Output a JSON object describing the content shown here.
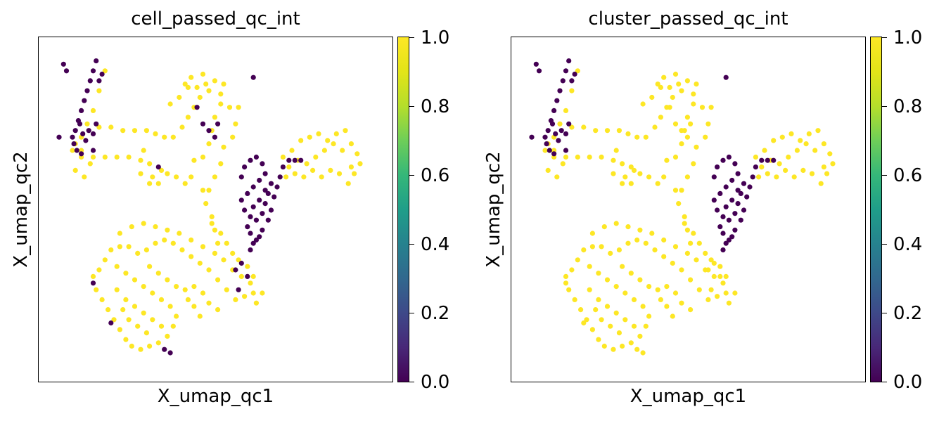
{
  "chart_data": [
    {
      "type": "scatter",
      "title": "cell_passed_qc_int",
      "xlabel": "X_umap_qc1",
      "ylabel": "X_umap_qc2",
      "colormap": "viridis",
      "colorbar": {
        "range": [
          0.0,
          1.0
        ],
        "ticks": [
          "0.0",
          "0.2",
          "0.4",
          "0.6",
          "0.8",
          "1.0"
        ]
      },
      "series": [
        {
          "values_color": "#fde725",
          "value": 1.0,
          "points": [
            [
              2.0,
              9.2
            ],
            [
              1.8,
              8.6
            ],
            [
              1.6,
              8.0
            ],
            [
              1.4,
              7.6
            ],
            [
              1.2,
              7.2
            ],
            [
              1.0,
              7.0
            ],
            [
              0.9,
              6.8
            ],
            [
              1.8,
              7.5
            ],
            [
              2.2,
              7.5
            ],
            [
              2.6,
              7.4
            ],
            [
              3.0,
              7.4
            ],
            [
              3.4,
              7.4
            ],
            [
              3.7,
              7.3
            ],
            [
              4.0,
              7.2
            ],
            [
              4.3,
              7.2
            ],
            [
              4.6,
              7.5
            ],
            [
              4.8,
              7.8
            ],
            [
              5.0,
              8.1
            ],
            [
              5.2,
              8.4
            ],
            [
              5.4,
              8.8
            ],
            [
              4.5,
              8.4
            ],
            [
              4.2,
              8.2
            ],
            [
              4.8,
              8.7
            ],
            [
              2.0,
              6.6
            ],
            [
              2.4,
              6.6
            ],
            [
              2.8,
              6.6
            ],
            [
              3.2,
              6.5
            ],
            [
              3.3,
              6.8
            ],
            [
              3.5,
              6.4
            ],
            [
              3.6,
              6.0
            ],
            [
              3.9,
              6.2
            ],
            [
              3.2,
              6.1
            ],
            [
              3.5,
              5.8
            ],
            [
              3.8,
              5.8
            ],
            [
              4.1,
              6.1
            ],
            [
              4.4,
              6.0
            ],
            [
              4.7,
              5.8
            ],
            [
              4.9,
              6.0
            ],
            [
              5.0,
              6.5
            ],
            [
              5.3,
              6.6
            ],
            [
              5.5,
              7.0
            ],
            [
              5.6,
              7.4
            ],
            [
              5.7,
              7.8
            ],
            [
              5.9,
              8.2
            ],
            [
              6.2,
              8.1
            ],
            [
              6.5,
              8.1
            ],
            [
              6.4,
              7.6
            ],
            [
              6.3,
              7.2
            ],
            [
              6.0,
              6.9
            ],
            [
              5.9,
              6.4
            ],
            [
              5.7,
              6.0
            ],
            [
              5.5,
              5.6
            ],
            [
              4.7,
              8.8
            ],
            [
              4.9,
              9.0
            ],
            [
              5.1,
              8.7
            ],
            [
              5.3,
              9.1
            ],
            [
              5.5,
              8.6
            ],
            [
              5.7,
              8.9
            ],
            [
              5.9,
              8.5
            ],
            [
              6.0,
              8.8
            ],
            [
              1.2,
              6.6
            ],
            [
              1.5,
              6.4
            ],
            [
              1.0,
              6.2
            ],
            [
              1.3,
              6.0
            ],
            [
              1.6,
              6.6
            ],
            [
              1.2,
              6.8
            ],
            [
              5.3,
              5.6
            ],
            [
              5.4,
              5.2
            ],
            [
              5.6,
              4.8
            ],
            [
              5.7,
              4.4
            ],
            [
              5.8,
              4.0
            ],
            [
              8.2,
              6.3
            ],
            [
              8.5,
              6.5
            ],
            [
              8.8,
              6.4
            ],
            [
              9.1,
              6.6
            ],
            [
              9.4,
              6.8
            ],
            [
              9.7,
              7.0
            ],
            [
              10.0,
              6.8
            ],
            [
              10.3,
              7.0
            ],
            [
              10.5,
              6.7
            ],
            [
              10.6,
              6.4
            ],
            [
              10.4,
              6.1
            ],
            [
              10.2,
              5.8
            ],
            [
              9.9,
              6.1
            ],
            [
              9.6,
              6.2
            ],
            [
              9.3,
              6.0
            ],
            [
              9.0,
              6.2
            ],
            [
              8.7,
              6.0
            ],
            [
              8.4,
              6.1
            ],
            [
              8.1,
              6.0
            ],
            [
              8.0,
              6.6
            ],
            [
              8.3,
              6.8
            ],
            [
              8.6,
              7.1
            ],
            [
              8.9,
              7.2
            ],
            [
              9.2,
              7.3
            ],
            [
              9.5,
              7.1
            ],
            [
              9.8,
              7.3
            ],
            [
              10.1,
              7.4
            ],
            [
              10.3,
              6.3
            ],
            [
              2.5,
              4.3
            ],
            [
              2.9,
              4.5
            ],
            [
              3.3,
              4.6
            ],
            [
              3.7,
              4.5
            ],
            [
              4.1,
              4.4
            ],
            [
              4.5,
              4.3
            ],
            [
              4.9,
              4.1
            ],
            [
              5.3,
              3.9
            ],
            [
              5.7,
              3.7
            ],
            [
              6.0,
              3.5
            ],
            [
              6.3,
              3.2
            ],
            [
              6.6,
              3.0
            ],
            [
              6.9,
              2.8
            ],
            [
              7.0,
              2.5
            ],
            [
              7.1,
              2.2
            ],
            [
              7.3,
              2.5
            ],
            [
              6.7,
              2.4
            ],
            [
              6.4,
              2.3
            ],
            [
              6.1,
              2.6
            ],
            [
              5.8,
              2.9
            ],
            [
              5.5,
              3.2
            ],
            [
              5.2,
              3.4
            ],
            [
              4.9,
              3.6
            ],
            [
              4.6,
              3.8
            ],
            [
              4.3,
              4.0
            ],
            [
              4.0,
              4.1
            ],
            [
              3.7,
              4.0
            ],
            [
              3.4,
              3.8
            ],
            [
              3.1,
              3.7
            ],
            [
              2.8,
              3.9
            ],
            [
              2.5,
              3.9
            ],
            [
              2.2,
              3.8
            ],
            [
              2.0,
              3.5
            ],
            [
              1.8,
              3.2
            ],
            [
              1.6,
              3.0
            ],
            [
              1.7,
              2.6
            ],
            [
              1.9,
              2.3
            ],
            [
              2.1,
              2.0
            ],
            [
              2.3,
              1.7
            ],
            [
              2.5,
              1.4
            ],
            [
              2.7,
              1.1
            ],
            [
              2.9,
              0.9
            ],
            [
              3.2,
              0.8
            ],
            [
              3.5,
              0.9
            ],
            [
              3.8,
              1.0
            ],
            [
              4.1,
              1.2
            ],
            [
              4.3,
              1.5
            ],
            [
              4.4,
              1.8
            ],
            [
              4.2,
              2.1
            ],
            [
              3.9,
              2.3
            ],
            [
              3.6,
              2.5
            ],
            [
              3.3,
              2.7
            ],
            [
              3.0,
              2.9
            ],
            [
              2.7,
              3.1
            ],
            [
              2.4,
              3.3
            ],
            [
              2.4,
              2.6
            ],
            [
              2.7,
              2.3
            ],
            [
              3.0,
              2.1
            ],
            [
              3.3,
              1.9
            ],
            [
              3.6,
              1.7
            ],
            [
              3.9,
              1.5
            ],
            [
              3.4,
              1.3
            ],
            [
              3.1,
              1.5
            ],
            [
              2.8,
              1.7
            ],
            [
              2.6,
              2.0
            ],
            [
              3.5,
              3.3
            ],
            [
              3.8,
              3.1
            ],
            [
              4.1,
              2.9
            ],
            [
              4.4,
              2.7
            ],
            [
              4.7,
              2.6
            ],
            [
              5.0,
              2.7
            ],
            [
              5.3,
              2.5
            ],
            [
              5.5,
              2.2
            ],
            [
              5.8,
              2.0
            ],
            [
              5.2,
              1.8
            ],
            [
              5.0,
              2.1
            ],
            [
              4.8,
              2.3
            ],
            [
              5.6,
              4.6
            ],
            [
              5.9,
              4.3
            ],
            [
              6.1,
              4.0
            ],
            [
              6.3,
              3.7
            ],
            [
              6.5,
              3.5
            ],
            [
              6.8,
              3.3
            ],
            [
              7.0,
              3.0
            ]
          ]
        },
        {
          "values_color": "#440154",
          "value": 0.0,
          "points": [
            [
              0.6,
              9.4
            ],
            [
              0.7,
              9.2
            ],
            [
              1.7,
              9.5
            ],
            [
              1.6,
              9.2
            ],
            [
              1.5,
              8.9
            ],
            [
              1.4,
              8.6
            ],
            [
              1.3,
              8.3
            ],
            [
              1.2,
              8.0
            ],
            [
              1.1,
              7.7
            ],
            [
              1.0,
              7.4
            ],
            [
              0.9,
              7.2
            ],
            [
              0.95,
              7.0
            ],
            [
              1.05,
              6.8
            ],
            [
              1.15,
              7.6
            ],
            [
              1.25,
              7.3
            ],
            [
              1.35,
              7.1
            ],
            [
              1.45,
              7.4
            ],
            [
              1.6,
              7.3
            ],
            [
              1.7,
              7.6
            ],
            [
              1.8,
              8.9
            ],
            [
              1.9,
              9.1
            ],
            [
              0.45,
              7.2
            ],
            [
              1.2,
              6.7
            ],
            [
              1.6,
              6.8
            ],
            [
              7.0,
              9.0
            ],
            [
              5.1,
              8.1
            ],
            [
              5.3,
              7.6
            ],
            [
              5.5,
              7.4
            ],
            [
              5.7,
              7.2
            ],
            [
              5.8,
              7.6
            ],
            [
              3.8,
              6.3
            ],
            [
              2.2,
              1.6
            ],
            [
              4.0,
              0.8
            ],
            [
              4.2,
              0.7
            ],
            [
              6.4,
              3.2
            ],
            [
              6.6,
              3.4
            ],
            [
              6.8,
              3.0
            ],
            [
              6.5,
              2.6
            ],
            [
              1.6,
              2.8
            ],
            [
              6.6,
              6.0
            ],
            [
              6.7,
              6.3
            ],
            [
              6.9,
              6.5
            ],
            [
              7.1,
              6.6
            ],
            [
              7.3,
              6.4
            ],
            [
              7.4,
              6.1
            ],
            [
              7.2,
              5.9
            ],
            [
              7.0,
              5.7
            ],
            [
              6.8,
              5.5
            ],
            [
              6.6,
              5.3
            ],
            [
              6.7,
              5.0
            ],
            [
              6.9,
              4.8
            ],
            [
              7.1,
              4.7
            ],
            [
              7.3,
              4.9
            ],
            [
              7.4,
              5.2
            ],
            [
              7.5,
              5.5
            ],
            [
              7.6,
              5.8
            ],
            [
              7.4,
              5.6
            ],
            [
              7.2,
              5.3
            ],
            [
              7.0,
              5.1
            ],
            [
              6.8,
              4.5
            ],
            [
              6.9,
              4.3
            ],
            [
              7.1,
              4.1
            ],
            [
              7.3,
              4.4
            ],
            [
              7.5,
              4.7
            ],
            [
              7.6,
              5.0
            ],
            [
              7.7,
              5.4
            ],
            [
              7.8,
              5.7
            ],
            [
              7.9,
              6.0
            ],
            [
              8.0,
              6.3
            ],
            [
              8.2,
              6.5
            ],
            [
              8.4,
              6.5
            ],
            [
              8.6,
              6.5
            ],
            [
              7.2,
              4.2
            ],
            [
              7.0,
              4.0
            ],
            [
              6.9,
              3.8
            ]
          ]
        }
      ]
    },
    {
      "type": "scatter",
      "title": "cluster_passed_qc_int",
      "xlabel": "X_umap_qc1",
      "ylabel": "X_umap_qc2",
      "colormap": "viridis",
      "colorbar": {
        "range": [
          0.0,
          1.0
        ],
        "ticks": [
          "0.0",
          "0.2",
          "0.4",
          "0.6",
          "0.8",
          "1.0"
        ]
      }
    }
  ],
  "panels": [
    {
      "title": "cell_passed_qc_int",
      "xlabel": "X_umap_qc1",
      "ylabel": "X_umap_qc2",
      "ticks": [
        "0.0",
        "0.2",
        "0.4",
        "0.6",
        "0.8",
        "1.0"
      ]
    },
    {
      "title": "cluster_passed_qc_int",
      "xlabel": "X_umap_qc1",
      "ylabel": "X_umap_qc2",
      "ticks": [
        "0.0",
        "0.2",
        "0.4",
        "0.6",
        "0.8",
        "1.0"
      ]
    }
  ]
}
